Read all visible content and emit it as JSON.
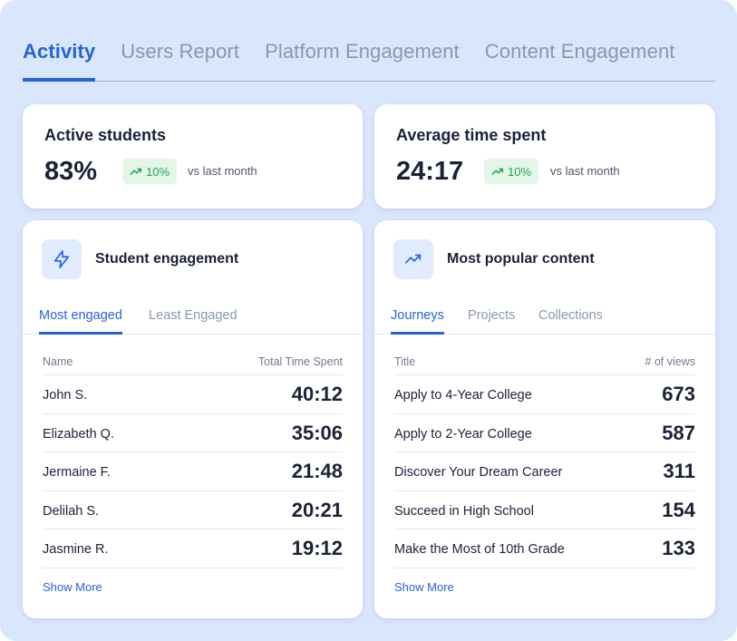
{
  "tabs": [
    {
      "label": "Activity"
    },
    {
      "label": "Users Report"
    },
    {
      "label": "Platform Engagement"
    },
    {
      "label": "Content Engagement"
    }
  ],
  "active_students": {
    "title": "Active students",
    "value": "83%",
    "badge": "10%",
    "compare": "vs last month"
  },
  "avg_time": {
    "title": "Average time spent",
    "value": "24:17",
    "badge": "10%",
    "compare": "vs last month"
  },
  "engagement": {
    "title": "Student engagement",
    "tabs": [
      "Most engaged",
      "Least Engaged"
    ],
    "col_name": "Name",
    "col_value": "Total Time Spent",
    "rows": [
      {
        "name": "John S.",
        "value": "40:12"
      },
      {
        "name": "Elizabeth Q.",
        "value": "35:06"
      },
      {
        "name": "Jermaine F.",
        "value": "21:48"
      },
      {
        "name": "Delilah S.",
        "value": "20:21"
      },
      {
        "name": "Jasmine R.",
        "value": "19:12"
      }
    ],
    "show_more": "Show More"
  },
  "popular": {
    "title": "Most popular content",
    "tabs": [
      "Journeys",
      "Projects",
      "Collections"
    ],
    "col_name": "Title",
    "col_value": "# of views",
    "rows": [
      {
        "name": "Apply to 4-Year College",
        "value": "673"
      },
      {
        "name": "Apply to 2-Year College",
        "value": "587"
      },
      {
        "name": "Discover Your Dream Career",
        "value": "311"
      },
      {
        "name": "Succeed in High School",
        "value": "154"
      },
      {
        "name": "Make the Most of 10th Grade",
        "value": "133"
      }
    ],
    "show_more": "Show More"
  },
  "colors": {
    "accent": "#2563d8",
    "positive": "#23a451",
    "background": "#d9e6fb"
  }
}
